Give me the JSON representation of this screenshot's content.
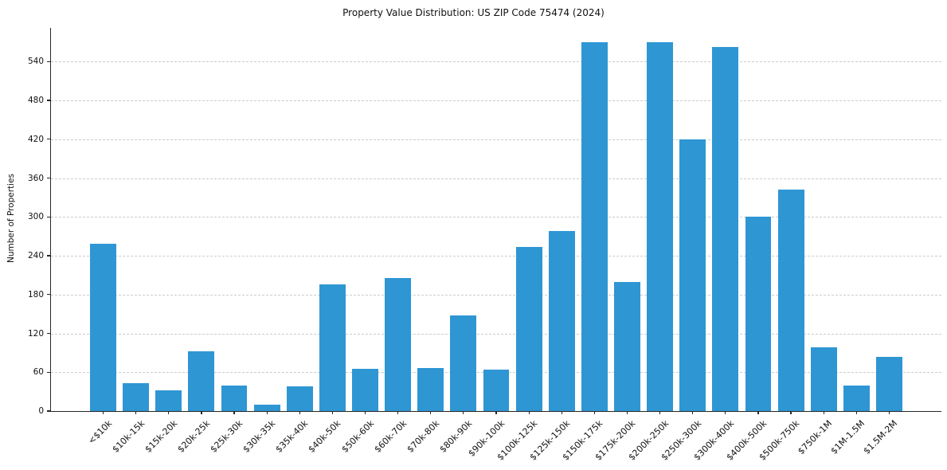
{
  "colors": {
    "bar": "#2e96d3",
    "grid": "#cccccc",
    "axis": "#262626",
    "background": "#ffffff"
  },
  "chart_data": {
    "type": "bar",
    "title": "Property Value Distribution: US ZIP Code 75474 (2024)",
    "xlabel": "",
    "ylabel": "Number of Properties",
    "categories": [
      "<$10k",
      "$10k-15k",
      "$15k-20k",
      "$20k-25k",
      "$25k-30k",
      "$30k-35k",
      "$35k-40k",
      "$40k-50k",
      "$50k-60k",
      "$60k-70k",
      "$70k-80k",
      "$80k-90k",
      "$90k-100k",
      "$100k-125k",
      "$125k-150k",
      "$150k-175k",
      "$175k-200k",
      "$200k-250k",
      "$250k-300k",
      "$300k-400k",
      "$400k-500k",
      "$500k-750k",
      "$750k-1M",
      "$1M-1.5M",
      "$1.5M-2M"
    ],
    "values": [
      258,
      43,
      32,
      92,
      40,
      10,
      38,
      196,
      65,
      205,
      66,
      148,
      64,
      254,
      278,
      570,
      199,
      570,
      420,
      563,
      300,
      342,
      99,
      40,
      84
    ],
    "yticks": [
      0,
      60,
      120,
      180,
      240,
      300,
      360,
      420,
      480,
      540
    ],
    "ylim": [
      0,
      592
    ],
    "grid": "dashed-horizontal",
    "legend": "none",
    "bar_width_fraction": 0.8
  }
}
